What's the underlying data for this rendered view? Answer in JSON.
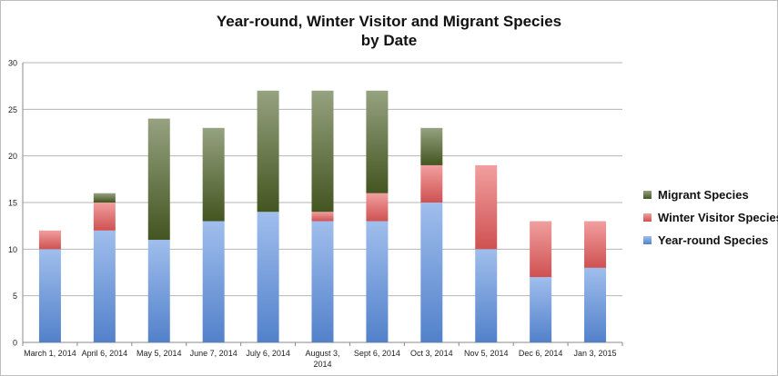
{
  "chart_data": {
    "type": "bar",
    "stacked": true,
    "title": "Year-round, Winter Visitor and Migrant Species",
    "subtitle": "by Date",
    "categories": [
      "March 1, 2014",
      "April 6, 2014",
      "May 5, 2014",
      "June 7, 2014",
      "July 6, 2014",
      "August 3, 2014",
      "Sept 6, 2014",
      "Oct 3, 2014",
      "Nov 5, 2014",
      "Dec 6, 2014",
      "Jan 3, 2015"
    ],
    "series": [
      {
        "name": "Year-round Species",
        "color": "#5b8fe0",
        "values": [
          10,
          12,
          11,
          13,
          14,
          13,
          13,
          15,
          10,
          7,
          8
        ]
      },
      {
        "name": "Winter Visitor Species",
        "color": "#e65a5a",
        "values": [
          2,
          3,
          0,
          0,
          0,
          1,
          3,
          4,
          9,
          6,
          5
        ]
      },
      {
        "name": "Migrant Species",
        "color": "#4a5e24",
        "values": [
          0,
          1,
          13,
          10,
          13,
          13,
          11,
          4,
          0,
          0,
          0
        ]
      }
    ],
    "legend_order": [
      "Migrant Species",
      "Winter Visitor Species",
      "Year-round Species"
    ],
    "ylim": [
      0,
      30
    ],
    "yticks": [
      0,
      5,
      10,
      15,
      20,
      25,
      30
    ],
    "grid": true,
    "legend_position": "right",
    "xlabel": "",
    "ylabel": ""
  }
}
